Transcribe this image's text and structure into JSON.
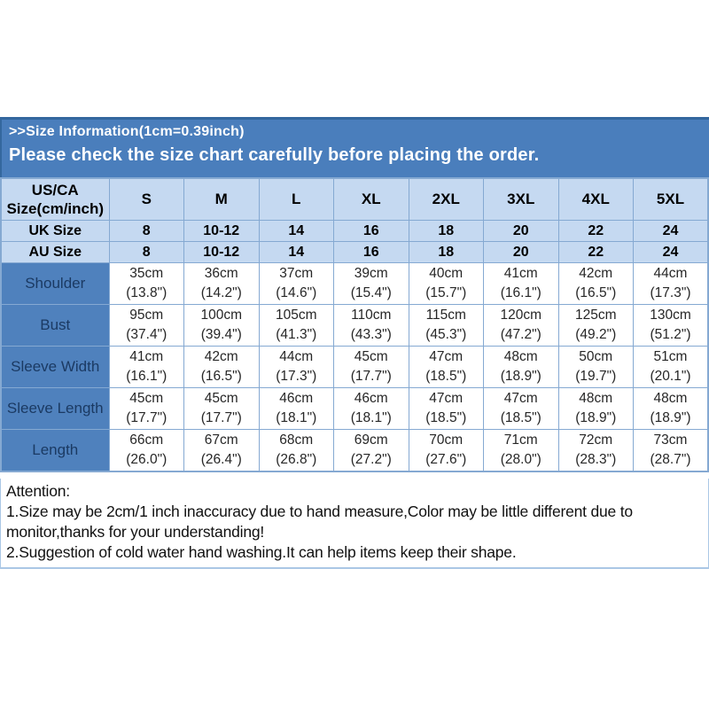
{
  "banner": {
    "line1": ">>Size Information(1cm=0.39inch)",
    "line2": "Please check the size chart carefully before placing the order."
  },
  "table": {
    "header": {
      "corner_label": "US/CA\nSize(cm/inch)",
      "sizes": [
        "S",
        "M",
        "L",
        "XL",
        "2XL",
        "3XL",
        "4XL",
        "5XL"
      ]
    },
    "region_rows": [
      {
        "label": "UK Size",
        "values": [
          "8",
          "10-12",
          "14",
          "16",
          "18",
          "20",
          "22",
          "24"
        ]
      },
      {
        "label": "AU  Size",
        "values": [
          "8",
          "10-12",
          "14",
          "16",
          "18",
          "20",
          "22",
          "24"
        ]
      }
    ],
    "measure_rows": [
      {
        "label": "Shoulder",
        "values": [
          {
            "cm": "35cm",
            "inch": "(13.8\")"
          },
          {
            "cm": "36cm",
            "inch": "(14.2\")"
          },
          {
            "cm": "37cm",
            "inch": "(14.6\")"
          },
          {
            "cm": "39cm",
            "inch": "(15.4\")"
          },
          {
            "cm": "40cm",
            "inch": "(15.7\")"
          },
          {
            "cm": "41cm",
            "inch": "(16.1\")"
          },
          {
            "cm": "42cm",
            "inch": "(16.5\")"
          },
          {
            "cm": "44cm",
            "inch": "(17.3\")"
          }
        ]
      },
      {
        "label": "Bust",
        "values": [
          {
            "cm": "95cm",
            "inch": "(37.4\")"
          },
          {
            "cm": "100cm",
            "inch": "(39.4\")"
          },
          {
            "cm": "105cm",
            "inch": "(41.3\")"
          },
          {
            "cm": "110cm",
            "inch": "(43.3\")"
          },
          {
            "cm": "115cm",
            "inch": "(45.3\")"
          },
          {
            "cm": "120cm",
            "inch": "(47.2\")"
          },
          {
            "cm": "125cm",
            "inch": "(49.2\")"
          },
          {
            "cm": "130cm",
            "inch": "(51.2\")"
          }
        ]
      },
      {
        "label": "Sleeve Width",
        "values": [
          {
            "cm": "41cm",
            "inch": "(16.1\")"
          },
          {
            "cm": "42cm",
            "inch": "(16.5\")"
          },
          {
            "cm": "44cm",
            "inch": "(17.3\")"
          },
          {
            "cm": "45cm",
            "inch": "(17.7\")"
          },
          {
            "cm": "47cm",
            "inch": "(18.5\")"
          },
          {
            "cm": "48cm",
            "inch": "(18.9\")"
          },
          {
            "cm": "50cm",
            "inch": "(19.7\")"
          },
          {
            "cm": "51cm",
            "inch": "(20.1\")"
          }
        ]
      },
      {
        "label": "Sleeve Length",
        "values": [
          {
            "cm": "45cm",
            "inch": "(17.7\")"
          },
          {
            "cm": "45cm",
            "inch": "(17.7\")"
          },
          {
            "cm": "46cm",
            "inch": "(18.1\")"
          },
          {
            "cm": "46cm",
            "inch": "(18.1\")"
          },
          {
            "cm": "47cm",
            "inch": "(18.5\")"
          },
          {
            "cm": "47cm",
            "inch": "(18.5\")"
          },
          {
            "cm": "48cm",
            "inch": "(18.9\")"
          },
          {
            "cm": "48cm",
            "inch": "(18.9\")"
          }
        ]
      },
      {
        "label": "Length",
        "values": [
          {
            "cm": "66cm",
            "inch": "(26.0\")"
          },
          {
            "cm": "67cm",
            "inch": "(26.4\")"
          },
          {
            "cm": "68cm",
            "inch": "(26.8\")"
          },
          {
            "cm": "69cm",
            "inch": "(27.2\")"
          },
          {
            "cm": "70cm",
            "inch": "(27.6\")"
          },
          {
            "cm": "71cm",
            "inch": "(28.0\")"
          },
          {
            "cm": "72cm",
            "inch": "(28.3\")"
          },
          {
            "cm": "73cm",
            "inch": "(28.7\")"
          }
        ]
      }
    ]
  },
  "attention": {
    "title": "Attention:",
    "note1": "1.Size may be 2cm/1 inch inaccuracy due to hand measure,Color may be little different due to monitor,thanks for your understanding!",
    "note2": "2.Suggestion of cold water hand washing.It can help items keep their shape."
  },
  "colors": {
    "banner_blue": "#4a7ebc",
    "banner_edge": "#34679e",
    "header_light_blue": "#c5d9f1",
    "label_blue": "#4f81bd",
    "label_text": "#1b3a63",
    "grid_blue": "#85a9d2",
    "note_border": "#aac7e5"
  }
}
